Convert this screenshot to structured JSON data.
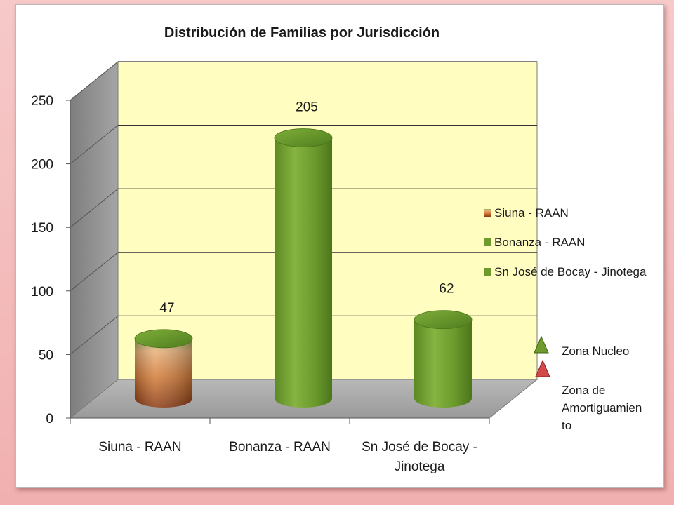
{
  "chart_data": {
    "type": "bar",
    "title": "Distribución de Familias por Jurisdicción",
    "categories": [
      "Siuna - RAAN",
      "Bonanza - RAAN",
      "Sn José de Bocay - Jinotega"
    ],
    "category_lines": [
      [
        "Siuna - RAAN"
      ],
      [
        "Bonanza - RAAN"
      ],
      [
        "Sn José de Bocay -",
        "Jinotega"
      ]
    ],
    "values": [
      47,
      205,
      62
    ],
    "data_labels": [
      "47",
      "205",
      "62"
    ],
    "series": [
      {
        "name": "Siuna - RAAN",
        "values": [
          47,
          null,
          null
        ]
      },
      {
        "name": "Bonanza - RAAN",
        "values": [
          null,
          205,
          null
        ]
      },
      {
        "name": "Sn José de Bocay - Jinotega",
        "values": [
          null,
          null,
          62
        ]
      }
    ],
    "yticks": [
      "0",
      "50",
      "100",
      "150",
      "200",
      "250"
    ],
    "ylim": [
      0,
      250
    ],
    "grid": true,
    "legend_position": "right",
    "colors": {
      "siuna_top": "#5a8a2a",
      "siuna_body": "#c9772f",
      "bonanza": "#6e9a2e",
      "bocay": "#6e9a2e",
      "back_wall": "#fffdc0",
      "side_wall": "#8c8c8c",
      "floor": "#a8a8a8"
    }
  },
  "side_legend": {
    "items": [
      {
        "icon": "green-triangle-icon",
        "lines": [
          "Zona Nucleo"
        ]
      },
      {
        "icon": "red-triangle-icon",
        "lines": [
          "Zona de",
          "Amortiguamien",
          "to"
        ]
      }
    ]
  }
}
